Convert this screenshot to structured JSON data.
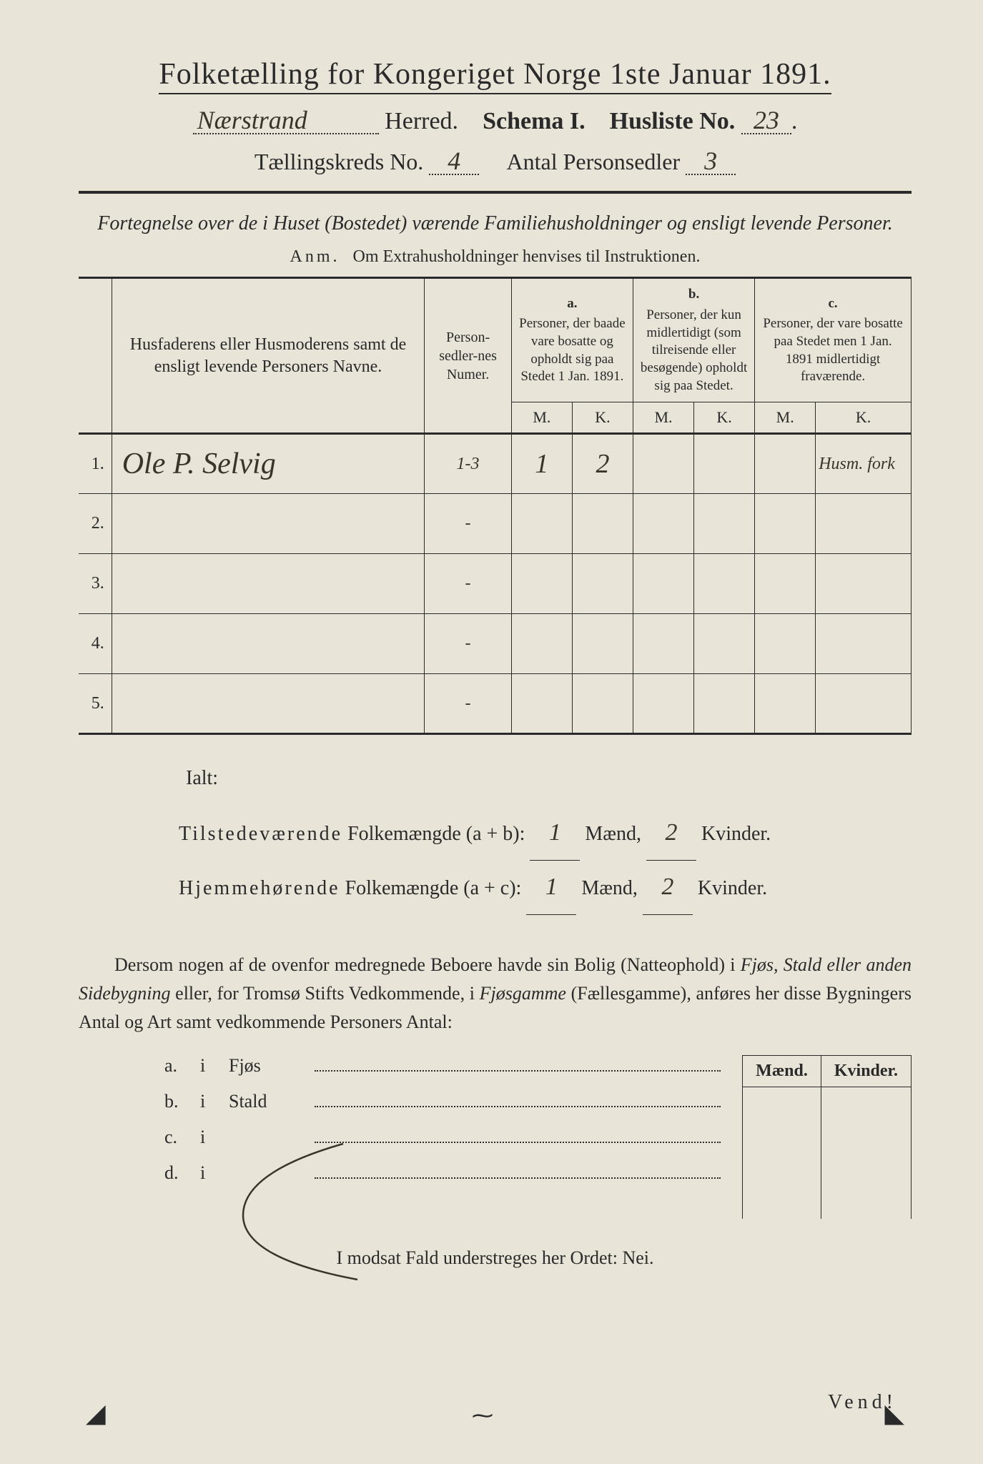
{
  "header": {
    "main_title": "Folketælling for Kongeriget Norge 1ste Januar 1891.",
    "herred_value": "Nærstrand",
    "herred_label": "Herred.",
    "schema_label": "Schema I.",
    "husliste_label": "Husliste No.",
    "husliste_value": "23",
    "kreds_label": "Tællingskreds No.",
    "kreds_value": "4",
    "antal_label": "Antal Personsedler",
    "antal_value": "3"
  },
  "desc": {
    "line1": "Fortegnelse over de i Huset (Bostedet) værende Familiehusholdninger og ensligt levende Personer.",
    "anm_label": "Anm.",
    "anm_text": "Om Extrahusholdninger henvises til Instruktionen."
  },
  "table": {
    "col_name": "Husfaderens eller Husmoderens samt de ensligt levende Personers Navne.",
    "col_num": "Person-sedler-nes Numer.",
    "col_a_letter": "a.",
    "col_a": "Personer, der baade vare bosatte og opholdt sig paa Stedet 1 Jan. 1891.",
    "col_b_letter": "b.",
    "col_b": "Personer, der kun midlertidigt (som tilreisende eller besøgende) opholdt sig paa Stedet.",
    "col_c_letter": "c.",
    "col_c": "Personer, der vare bosatte paa Stedet men 1 Jan. 1891 midlertidigt fraværende.",
    "m": "M.",
    "k": "K.",
    "rows": [
      {
        "n": "1.",
        "name": "Ole P. Selvig",
        "num": "1-3",
        "am": "1",
        "ak": "2",
        "bm": "",
        "bk": "",
        "cm": "",
        "ck": "",
        "note": "Husm. fork"
      },
      {
        "n": "2.",
        "name": "",
        "num": "-",
        "am": "",
        "ak": "",
        "bm": "",
        "bk": "",
        "cm": "",
        "ck": "",
        "note": ""
      },
      {
        "n": "3.",
        "name": "",
        "num": "-",
        "am": "",
        "ak": "",
        "bm": "",
        "bk": "",
        "cm": "",
        "ck": "",
        "note": ""
      },
      {
        "n": "4.",
        "name": "",
        "num": "-",
        "am": "",
        "ak": "",
        "bm": "",
        "bk": "",
        "cm": "",
        "ck": "",
        "note": ""
      },
      {
        "n": "5.",
        "name": "",
        "num": "-",
        "am": "",
        "ak": "",
        "bm": "",
        "bk": "",
        "cm": "",
        "ck": "",
        "note": ""
      }
    ]
  },
  "totals": {
    "ialt": "Ialt:",
    "line1_a": "Tilstedeværende",
    "line1_b": "Folkemængde (a + b):",
    "line2_a": "Hjemmehørende",
    "line2_b": "Folkemængde (a + c):",
    "maend": "Mænd,",
    "kvinder": "Kvinder.",
    "v1m": "1",
    "v1k": "2",
    "v2m": "1",
    "v2k": "2"
  },
  "para": "Dersom nogen af de ovenfor medregnede Beboere havde sin Bolig (Natteophold) i Fjøs, Stald eller anden Sidebygning eller, for Tromsø Stifts Vedkommende, i Fjøsgamme (Fællesgamme), anføres her disse Bygningers Antal og Art samt vedkommende Personers Antal:",
  "dwelling": {
    "mk_m": "Mænd.",
    "mk_k": "Kvinder.",
    "rows": [
      {
        "a": "a.",
        "i": "i",
        "name": "Fjøs"
      },
      {
        "a": "b.",
        "i": "i",
        "name": "Stald"
      },
      {
        "a": "c.",
        "i": "i",
        "name": ""
      },
      {
        "a": "d.",
        "i": "i",
        "name": ""
      }
    ]
  },
  "nei": "I modsat Fald understreges her Ordet: Nei.",
  "vend": "Vend!",
  "colors": {
    "paper": "#e8e4d8",
    "ink": "#2a2a2a",
    "handwriting": "#3a342a",
    "background": "#1a1a1a"
  }
}
